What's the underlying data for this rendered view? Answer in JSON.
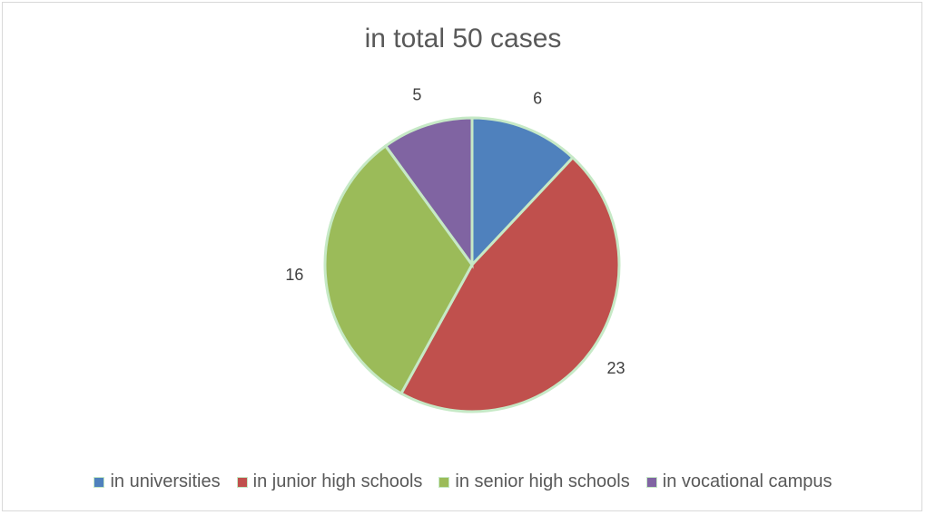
{
  "chart_data": {
    "type": "pie",
    "title": "in total 50 cases",
    "categories": [
      "in universities",
      "in junior high schools",
      "in senior high schools",
      "in vocational campus"
    ],
    "values": [
      6,
      23,
      16,
      5
    ],
    "colors": [
      "#4f81bd",
      "#c0504d",
      "#9bbb59",
      "#8064a2"
    ],
    "slice_border_color": "#c6e9c6",
    "legend_position": "bottom",
    "data_labels": [
      "6",
      "23",
      "16",
      "5"
    ]
  }
}
